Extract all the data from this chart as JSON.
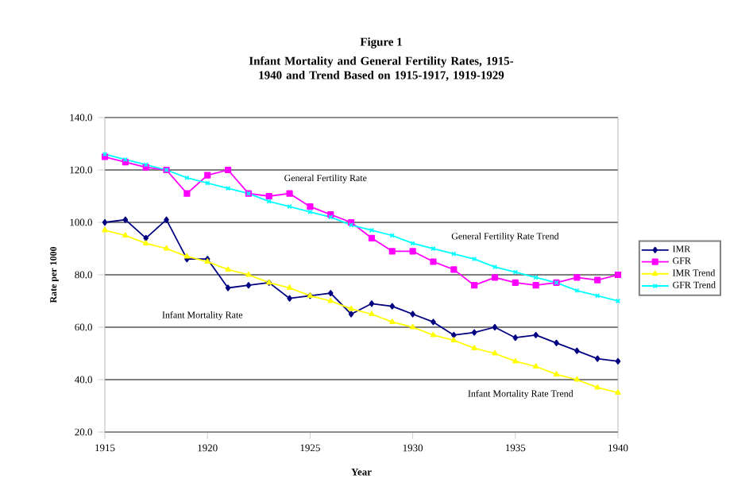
{
  "chart_data": {
    "type": "line",
    "title": "Figure 1",
    "subtitle": "Infant Mortality and General Fertility Rates, 1915-1940 and Trend Based on 1915-1917, 1919-1929",
    "xlabel": "Year",
    "ylabel": "Rate per 1000",
    "x": [
      1915,
      1916,
      1917,
      1918,
      1919,
      1920,
      1921,
      1922,
      1923,
      1924,
      1925,
      1926,
      1927,
      1928,
      1929,
      1930,
      1931,
      1932,
      1933,
      1934,
      1935,
      1936,
      1937,
      1938,
      1939,
      1940
    ],
    "series": [
      {
        "name": "IMR",
        "color": "#000080",
        "marker": "diamond",
        "values": [
          100,
          101,
          94,
          101,
          86,
          86,
          75,
          76,
          77,
          71,
          72,
          73,
          65,
          69,
          68,
          65,
          62,
          57,
          58,
          60,
          56,
          57,
          54,
          51,
          48,
          47
        ]
      },
      {
        "name": "GFR",
        "color": "#ff00ff",
        "marker": "square",
        "values": [
          125,
          123,
          121,
          120,
          111,
          118,
          120,
          111,
          110,
          111,
          106,
          103,
          100,
          94,
          89,
          89,
          85,
          82,
          76,
          79,
          77,
          76,
          77,
          79,
          78,
          80
        ]
      },
      {
        "name": "IMR Trend",
        "color": "#ffff00",
        "marker": "triangle",
        "values": [
          97,
          95,
          92,
          90,
          87,
          85,
          82,
          80,
          77,
          75,
          72,
          70,
          67,
          65,
          62,
          60,
          57,
          55,
          52,
          50,
          47,
          45,
          42,
          40,
          37,
          35
        ]
      },
      {
        "name": "GFR Trend",
        "color": "#00ffff",
        "marker": "cross",
        "values": [
          126,
          124,
          122,
          120,
          117,
          115,
          113,
          111,
          108,
          106,
          104,
          102,
          99,
          97,
          95,
          92,
          90,
          88,
          86,
          83,
          81,
          79,
          77,
          74,
          72,
          70
        ]
      }
    ],
    "xlim": [
      1915,
      1940
    ],
    "xticks": [
      1915,
      1920,
      1925,
      1930,
      1935,
      1940
    ],
    "ylim": [
      20,
      140
    ],
    "yticks": [
      {
        "value": 20,
        "label": "20.0"
      },
      {
        "value": 40,
        "label": "40.0"
      },
      {
        "value": 60,
        "label": "60.0"
      },
      {
        "value": 80,
        "label": "80.0"
      },
      {
        "value": 100,
        "label": "100.0"
      },
      {
        "value": 120,
        "label": "120.0"
      },
      {
        "value": 140,
        "label": "140.0"
      }
    ],
    "grid": "y",
    "legend": "right",
    "line_style": "solid",
    "annotations": [
      "General Fertility Rate",
      "General Fertility Rate Trend",
      "Infant Mortality Rate",
      "Infant Mortality Rate Trend"
    ]
  }
}
